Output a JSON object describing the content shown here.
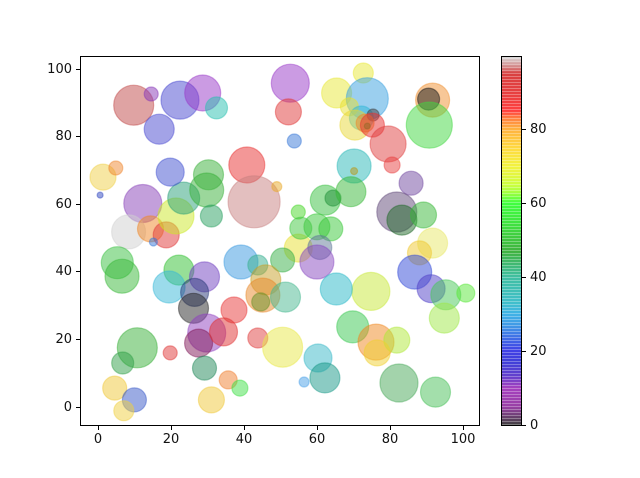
{
  "chart_data": {
    "type": "scatter",
    "title": "",
    "xlabel": "",
    "ylabel": "",
    "xlim": [
      -5,
      103
    ],
    "ylim": [
      -5,
      104
    ],
    "grid": false,
    "marker_alpha": 0.5,
    "x_ticks": [
      0,
      20,
      40,
      60,
      80,
      100
    ],
    "y_ticks": [
      0,
      20,
      40,
      60,
      80,
      100
    ],
    "colorbar": {
      "ticks": [
        0,
        20,
        40,
        60,
        80
      ],
      "vmin": 0,
      "vmax": 99.5,
      "colormap": "nipy_spectral",
      "stops": [
        {
          "v": 0,
          "c": "#000000"
        },
        {
          "v": 5,
          "c": "#770088"
        },
        {
          "v": 10,
          "c": "#8800aa"
        },
        {
          "v": 13,
          "c": "#3300bb"
        },
        {
          "v": 17,
          "c": "#0000cc"
        },
        {
          "v": 20,
          "c": "#0000dd"
        },
        {
          "v": 23,
          "c": "#0033dd"
        },
        {
          "v": 27,
          "c": "#0077dd"
        },
        {
          "v": 30,
          "c": "#0099dd"
        },
        {
          "v": 33,
          "c": "#00aaba"
        },
        {
          "v": 37,
          "c": "#00aa99"
        },
        {
          "v": 40,
          "c": "#00aa83"
        },
        {
          "v": 43,
          "c": "#00a34d"
        },
        {
          "v": 47,
          "c": "#009900"
        },
        {
          "v": 50,
          "c": "#00b300"
        },
        {
          "v": 55,
          "c": "#00dd00"
        },
        {
          "v": 60,
          "c": "#00ff00"
        },
        {
          "v": 63,
          "c": "#88ff00"
        },
        {
          "v": 65,
          "c": "#bbff00"
        },
        {
          "v": 68,
          "c": "#ddf200"
        },
        {
          "v": 70,
          "c": "#eeee00"
        },
        {
          "v": 75,
          "c": "#ffcc00"
        },
        {
          "v": 80,
          "c": "#ff9900"
        },
        {
          "v": 83,
          "c": "#ff5500"
        },
        {
          "v": 85,
          "c": "#ff0000"
        },
        {
          "v": 90,
          "c": "#dd0000"
        },
        {
          "v": 95,
          "c": "#cc0000"
        },
        {
          "v": 97,
          "c": "#c66666"
        },
        {
          "v": 99.5,
          "c": "#cccccc"
        }
      ]
    },
    "points": [
      {
        "x": 9.5,
        "y": 89.6,
        "r": 20,
        "c": "#c04848"
      },
      {
        "x": 14.3,
        "y": 92.9,
        "r": 7,
        "c": "#8838b8"
      },
      {
        "x": 22.2,
        "y": 91.1,
        "r": 19,
        "c": "#4848d0"
      },
      {
        "x": 28.4,
        "y": 93.2,
        "r": 18,
        "c": "#9838c8"
      },
      {
        "x": 32.2,
        "y": 88.8,
        "r": 11,
        "c": "#28c0b0"
      },
      {
        "x": 16.5,
        "y": 82.5,
        "r": 15,
        "c": "#4848d0"
      },
      {
        "x": 1.1,
        "y": 68.3,
        "r": 13,
        "c": "#f0d048"
      },
      {
        "x": 4.6,
        "y": 71.0,
        "r": 7,
        "c": "#f08830"
      },
      {
        "x": 0.3,
        "y": 63.0,
        "r": 3,
        "c": "#3048c0"
      },
      {
        "x": 12.0,
        "y": 60.5,
        "r": 19,
        "c": "#8840b8"
      },
      {
        "x": 8.1,
        "y": 52.1,
        "r": 17,
        "c": "#d0d0d0"
      },
      {
        "x": 14.1,
        "y": 53.0,
        "r": 13,
        "c": "#f08828"
      },
      {
        "x": 18.4,
        "y": 51.2,
        "r": 13,
        "c": "#e03838"
      },
      {
        "x": 14.9,
        "y": 49.1,
        "r": 4,
        "c": "#3878d8"
      },
      {
        "x": 21.1,
        "y": 56.8,
        "r": 18,
        "c": "#cce828"
      },
      {
        "x": 23.2,
        "y": 62.1,
        "r": 16,
        "c": "#28a078"
      },
      {
        "x": 30.0,
        "y": 69.0,
        "r": 15,
        "c": "#38b038"
      },
      {
        "x": 29.5,
        "y": 64.5,
        "r": 17,
        "c": "#38b038"
      },
      {
        "x": 30.8,
        "y": 56.8,
        "r": 11,
        "c": "#28a060"
      },
      {
        "x": 19.5,
        "y": 69.8,
        "r": 14,
        "c": "#4050d0"
      },
      {
        "x": 40.5,
        "y": 71.9,
        "r": 18,
        "c": "#e83030"
      },
      {
        "x": 42.5,
        "y": 61.0,
        "r": 26,
        "c": "#c88080"
      },
      {
        "x": 52.4,
        "y": 96.1,
        "r": 19,
        "c": "#9838c8"
      },
      {
        "x": 51.9,
        "y": 87.6,
        "r": 13,
        "c": "#e03838"
      },
      {
        "x": 72.4,
        "y": 99.1,
        "r": 10,
        "c": "#e8e838"
      },
      {
        "x": 65.1,
        "y": 93.2,
        "r": 15,
        "c": "#e8e838"
      },
      {
        "x": 73.5,
        "y": 91.5,
        "r": 21,
        "c": "#38a0e0"
      },
      {
        "x": 68.6,
        "y": 89.1,
        "r": 9,
        "c": "#e8e030"
      },
      {
        "x": 71.9,
        "y": 85.8,
        "r": 12,
        "c": "#30b8d8"
      },
      {
        "x": 70.1,
        "y": 83.7,
        "r": 15,
        "c": "#e8d838"
      },
      {
        "x": 75.1,
        "y": 86.7,
        "r": 6,
        "c": "#404040"
      },
      {
        "x": 72.9,
        "y": 84.3,
        "r": 9,
        "c": "#f08828"
      },
      {
        "x": 73.5,
        "y": 83.4,
        "r": 3,
        "c": "#40a020"
      },
      {
        "x": 74.9,
        "y": 83.7,
        "r": 12,
        "c": "#e83030"
      },
      {
        "x": 79.2,
        "y": 78.1,
        "r": 18,
        "c": "#e04040"
      },
      {
        "x": 80.3,
        "y": 71.9,
        "r": 8,
        "c": "#e84040"
      },
      {
        "x": 91.4,
        "y": 91.1,
        "r": 17,
        "c": "#f09030"
      },
      {
        "x": 90.3,
        "y": 91.4,
        "r": 11,
        "c": "#181818"
      },
      {
        "x": 90.5,
        "y": 83.7,
        "r": 23,
        "c": "#40d840"
      },
      {
        "x": 53.5,
        "y": 79.0,
        "r": 7,
        "c": "#3878d8"
      },
      {
        "x": 69.9,
        "y": 71.6,
        "r": 17,
        "c": "#28b8b8"
      },
      {
        "x": 69.9,
        "y": 70.1,
        "r": 3.5,
        "c": "#b89818"
      },
      {
        "x": 85.5,
        "y": 66.5,
        "r": 12,
        "c": "#7048a0"
      },
      {
        "x": 48.7,
        "y": 65.5,
        "r": 5,
        "c": "#e8a828"
      },
      {
        "x": 81.6,
        "y": 58.0,
        "r": 20,
        "c": "#604878"
      },
      {
        "x": 83.0,
        "y": 55.6,
        "r": 15,
        "c": "#206828"
      },
      {
        "x": 88.9,
        "y": 57.1,
        "r": 13,
        "c": "#38b838"
      },
      {
        "x": 54.6,
        "y": 58.0,
        "r": 7,
        "c": "#48d828"
      },
      {
        "x": 62.0,
        "y": 61.5,
        "r": 15,
        "c": "#38c040"
      },
      {
        "x": 64.1,
        "y": 62.1,
        "r": 8,
        "c": "#209038"
      },
      {
        "x": 69.0,
        "y": 64.0,
        "r": 15,
        "c": "#38b838"
      },
      {
        "x": 54.6,
        "y": 47.3,
        "r": 14,
        "c": "#e8e030"
      },
      {
        "x": 59.7,
        "y": 53.6,
        "r": 13,
        "c": "#38c838"
      },
      {
        "x": 63.5,
        "y": 53.0,
        "r": 12,
        "c": "#38c838"
      },
      {
        "x": 55.3,
        "y": 53.2,
        "r": 11,
        "c": "#40c840"
      },
      {
        "x": 60.5,
        "y": 47.5,
        "r": 12,
        "c": "#607898"
      },
      {
        "x": 59.7,
        "y": 43.2,
        "r": 17,
        "c": "#8848c0"
      },
      {
        "x": 91.4,
        "y": 48.8,
        "r": 15,
        "c": "#e8e868"
      },
      {
        "x": 87.8,
        "y": 45.9,
        "r": 12,
        "c": "#f0c830"
      },
      {
        "x": 86.5,
        "y": 40.2,
        "r": 17,
        "c": "#3048d8"
      },
      {
        "x": 91.0,
        "y": 35.3,
        "r": 14,
        "c": "#5040c8"
      },
      {
        "x": 95.0,
        "y": 33.5,
        "r": 15,
        "c": "#48c858"
      },
      {
        "x": 100.5,
        "y": 34.0,
        "r": 9,
        "c": "#58e838"
      },
      {
        "x": 74.5,
        "y": 34.5,
        "r": 19,
        "c": "#c8e838"
      },
      {
        "x": 65.0,
        "y": 35.2,
        "r": 16,
        "c": "#28b8c8"
      },
      {
        "x": 38.9,
        "y": 43.2,
        "r": 17,
        "c": "#3898e0"
      },
      {
        "x": 43.5,
        "y": 42.3,
        "r": 10,
        "c": "#38b090"
      },
      {
        "x": 50.3,
        "y": 43.8,
        "r": 12,
        "c": "#38b048"
      },
      {
        "x": 45.7,
        "y": 37.9,
        "r": 15,
        "c": "#c8a028"
      },
      {
        "x": 44.9,
        "y": 33.4,
        "r": 17,
        "c": "#e88828"
      },
      {
        "x": 44.3,
        "y": 31.4,
        "r": 9,
        "c": "#689028"
      },
      {
        "x": 51.1,
        "y": 32.8,
        "r": 15,
        "c": "#48b890"
      },
      {
        "x": 5.0,
        "y": 43.0,
        "r": 16,
        "c": "#38c040"
      },
      {
        "x": 6.3,
        "y": 39.0,
        "r": 17,
        "c": "#38b838"
      },
      {
        "x": 21.9,
        "y": 40.8,
        "r": 15,
        "c": "#30c030"
      },
      {
        "x": 19.2,
        "y": 35.8,
        "r": 16,
        "c": "#38b8d8"
      },
      {
        "x": 28.9,
        "y": 38.8,
        "r": 15,
        "c": "#7040c0"
      },
      {
        "x": 26.2,
        "y": 34.2,
        "r": 14,
        "c": "#283878"
      },
      {
        "x": 25.9,
        "y": 29.5,
        "r": 15,
        "c": "#282828"
      },
      {
        "x": 37.0,
        "y": 29.0,
        "r": 13,
        "c": "#e83838"
      },
      {
        "x": 29.5,
        "y": 22.2,
        "r": 19,
        "c": "#9040c0"
      },
      {
        "x": 27.3,
        "y": 19.2,
        "r": 14,
        "c": "#801858"
      },
      {
        "x": 34.1,
        "y": 22.5,
        "r": 14,
        "c": "#e03030"
      },
      {
        "x": 43.5,
        "y": 20.7,
        "r": 10,
        "c": "#e04040"
      },
      {
        "x": 50.3,
        "y": 18.0,
        "r": 20,
        "c": "#e8e848"
      },
      {
        "x": 10.5,
        "y": 17.8,
        "r": 20,
        "c": "#38b038"
      },
      {
        "x": 6.5,
        "y": 13.3,
        "r": 11,
        "c": "#30a048"
      },
      {
        "x": 19.5,
        "y": 16.3,
        "r": 7,
        "c": "#e03838"
      },
      {
        "x": 28.9,
        "y": 11.8,
        "r": 12,
        "c": "#208858"
      },
      {
        "x": 4.3,
        "y": 5.9,
        "r": 12,
        "c": "#f0c838"
      },
      {
        "x": 9.7,
        "y": 2.4,
        "r": 12,
        "c": "#3858c8"
      },
      {
        "x": 6.8,
        "y": -0.8,
        "r": 10,
        "c": "#f0d040"
      },
      {
        "x": 35.4,
        "y": 8.3,
        "r": 9,
        "c": "#f08030"
      },
      {
        "x": 38.6,
        "y": 5.9,
        "r": 8,
        "c": "#40e048"
      },
      {
        "x": 30.8,
        "y": 2.4,
        "r": 13,
        "c": "#f0c838"
      },
      {
        "x": 60.0,
        "y": 14.8,
        "r": 14,
        "c": "#38b8c8"
      },
      {
        "x": 61.9,
        "y": 8.9,
        "r": 15,
        "c": "#189888"
      },
      {
        "x": 56.2,
        "y": 7.7,
        "r": 5,
        "c": "#48a0e8"
      },
      {
        "x": 69.5,
        "y": 24.0,
        "r": 16,
        "c": "#38c850"
      },
      {
        "x": 75.9,
        "y": 19.5,
        "r": 18,
        "c": "#f08820"
      },
      {
        "x": 81.6,
        "y": 20.1,
        "r": 13,
        "c": "#b0e838"
      },
      {
        "x": 76.2,
        "y": 16.3,
        "r": 13,
        "c": "#f0d030"
      },
      {
        "x": 82.2,
        "y": 7.4,
        "r": 19,
        "c": "#48a858"
      },
      {
        "x": 92.2,
        "y": 4.7,
        "r": 15,
        "c": "#48c058"
      },
      {
        "x": 94.6,
        "y": 26.6,
        "r": 15,
        "c": "#a0e848"
      }
    ]
  }
}
